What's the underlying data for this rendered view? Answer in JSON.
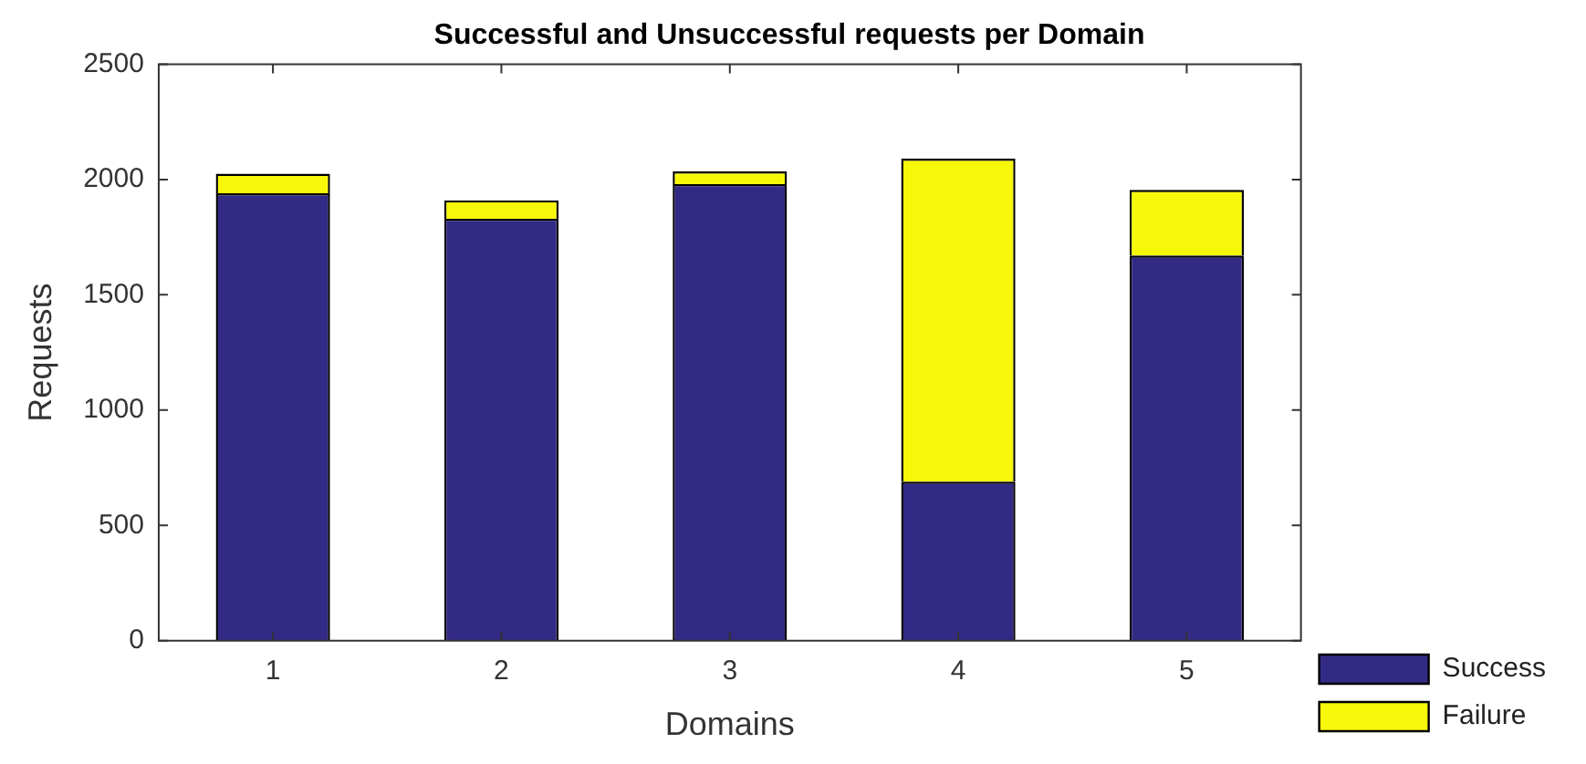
{
  "chart_data": {
    "type": "bar",
    "title": "Successful and Unsuccessful requests per Domain",
    "xlabel": "Domains",
    "ylabel": "Requests",
    "categories": [
      "1",
      "2",
      "3",
      "4",
      "5"
    ],
    "series": [
      {
        "name": "Success",
        "color": "#332a85",
        "values": [
          1940,
          1830,
          1980,
          690,
          1670
        ]
      },
      {
        "name": "Failure",
        "color": "#f7f70a",
        "values": [
          85,
          80,
          55,
          1400,
          285
        ]
      }
    ],
    "stacked": true,
    "ylim": [
      0,
      2500
    ],
    "yticks": [
      0,
      500,
      1000,
      1500,
      2000,
      2500
    ],
    "grid": false,
    "legend": "bottom right"
  }
}
